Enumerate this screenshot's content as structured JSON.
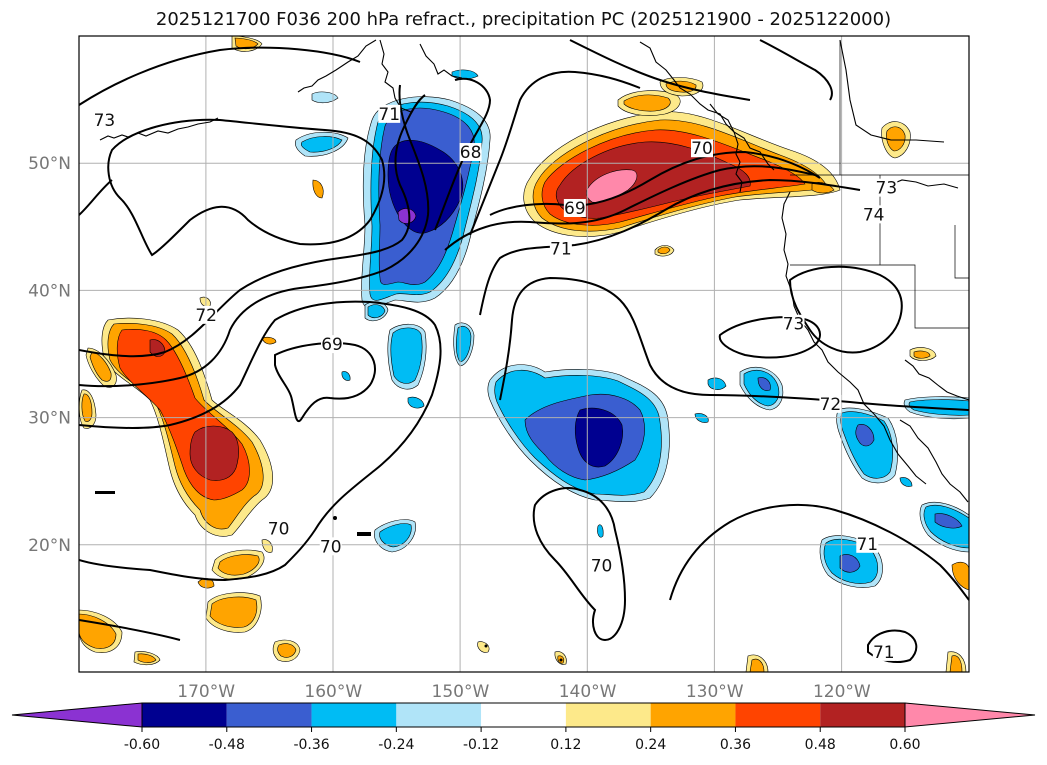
{
  "title": "2025121700 F036 200 hPa refract., precipitation PC (2025121900 - 2025122000)",
  "map": {
    "lon_range": [
      -180,
      -110
    ],
    "lat_range": [
      10,
      60
    ],
    "lat_ticks": [
      {
        "value": 50,
        "label": "50°N"
      },
      {
        "value": 40,
        "label": "40°N"
      },
      {
        "value": 30,
        "label": "30°N"
      },
      {
        "value": 20,
        "label": "20°N"
      }
    ],
    "lon_ticks": [
      {
        "value": -170,
        "label": "170°W"
      },
      {
        "value": -160,
        "label": "160°W"
      },
      {
        "value": -150,
        "label": "150°W"
      },
      {
        "value": -140,
        "label": "140°W"
      },
      {
        "value": -130,
        "label": "130°W"
      },
      {
        "value": -120,
        "label": "120°W"
      }
    ],
    "contour_labels": [
      {
        "text": "73",
        "lon": -178.0,
        "lat": 53.3
      },
      {
        "text": "71",
        "lon": -155.6,
        "lat": 53.8
      },
      {
        "text": "68",
        "lon": -149.2,
        "lat": 50.8
      },
      {
        "text": "70",
        "lon": -131.0,
        "lat": 51.1
      },
      {
        "text": "73",
        "lon": -116.5,
        "lat": 48.0
      },
      {
        "text": "74",
        "lon": -117.5,
        "lat": 45.9
      },
      {
        "text": "69",
        "lon": -141.0,
        "lat": 46.4
      },
      {
        "text": "71",
        "lon": -142.1,
        "lat": 43.2
      },
      {
        "text": "72",
        "lon": -170.0,
        "lat": 38.0
      },
      {
        "text": "69",
        "lon": -160.1,
        "lat": 35.7
      },
      {
        "text": "72",
        "lon": -120.9,
        "lat": 31.0
      },
      {
        "text": "73",
        "lon": -123.8,
        "lat": 37.3
      },
      {
        "text": "70",
        "lon": -164.3,
        "lat": 21.2
      },
      {
        "text": "70",
        "lon": -160.2,
        "lat": 19.8
      },
      {
        "text": "70",
        "lon": -138.9,
        "lat": 18.3
      },
      {
        "text": "71",
        "lon": -118.0,
        "lat": 20.0
      },
      {
        "text": "71",
        "lon": -116.7,
        "lat": 11.5
      }
    ]
  },
  "colorbar": {
    "colors": [
      "#8b32d2",
      "#000090",
      "#3a5ed0",
      "#00bcf4",
      "#b0e4f8",
      "#ffffff",
      "#fde98a",
      "#ffa400",
      "#ff4400",
      "#b22222",
      "#ff88aa"
    ],
    "ticks": [
      "-0.60",
      "-0.48",
      "-0.36",
      "-0.24",
      "-0.12",
      "0.12",
      "0.24",
      "0.36",
      "0.48",
      "0.60"
    ]
  }
}
